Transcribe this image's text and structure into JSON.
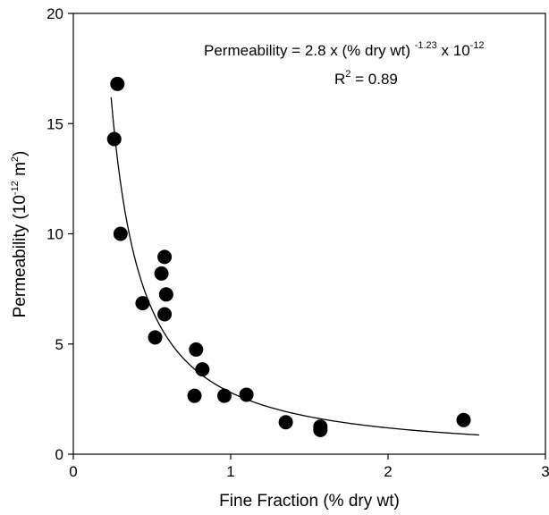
{
  "chart_data": {
    "type": "scatter",
    "title": "",
    "xlabel": "Fine Fraction (% dry wt)",
    "ylabel": {
      "prefix": "Permeability (10",
      "exp": "-12",
      "unit": " m",
      "unit_exp": "2",
      "suffix": ")"
    },
    "xlim": [
      0,
      3
    ],
    "ylim": [
      0,
      20
    ],
    "xticks": [
      0,
      1,
      2,
      3
    ],
    "yticks": [
      0,
      5,
      10,
      15,
      20
    ],
    "grid": false,
    "legend": "none",
    "annotations": {
      "equation": {
        "lead": "Permeability = 2.8 x (% dry wt) ",
        "exp": "-1.23",
        "tail": " x 10",
        "tail_exp": "-12"
      },
      "r2": {
        "base": "R",
        "exp": "2",
        "tail": " = 0.89"
      }
    },
    "series": [
      {
        "values_xy": [
          [
            0.28,
            16.8
          ],
          [
            0.26,
            14.3
          ],
          [
            0.3,
            10.0
          ],
          [
            0.44,
            6.85
          ],
          [
            0.52,
            5.3
          ],
          [
            0.56,
            8.2
          ],
          [
            0.58,
            8.95
          ],
          [
            0.59,
            7.25
          ],
          [
            0.58,
            6.35
          ],
          [
            0.78,
            4.75
          ],
          [
            0.82,
            3.85
          ],
          [
            0.77,
            2.65
          ],
          [
            0.96,
            2.65
          ],
          [
            1.1,
            2.7
          ],
          [
            1.35,
            1.45
          ],
          [
            1.57,
            1.25
          ],
          [
            1.57,
            1.1
          ],
          [
            2.48,
            1.55
          ]
        ],
        "color": "#000000"
      }
    ],
    "fit": {
      "coefficient": 2.8,
      "exponent": -1.23,
      "x_range": [
        0.24,
        2.58
      ],
      "color": "#000000"
    }
  }
}
